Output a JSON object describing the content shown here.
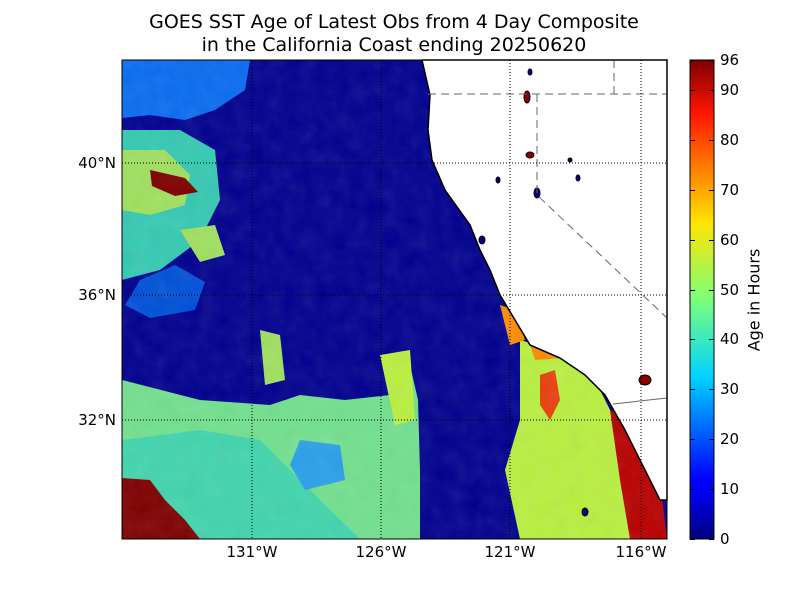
{
  "title_line1": "GOES SST Age of Latest Obs from 4 Day Composite",
  "title_line2": "in the California Coast ending 20250620",
  "lat_labels": [
    "40°N",
    "36°N",
    "32°N"
  ],
  "lon_labels": [
    "131°W",
    "126°W",
    "121°W",
    "116°W"
  ],
  "colorbar": {
    "label": "Age in Hours",
    "ticks": [
      "0",
      "10",
      "20",
      "30",
      "40",
      "50",
      "60",
      "70",
      "80",
      "90",
      "96"
    ],
    "min": 0,
    "max": 96,
    "colormap": "jet"
  },
  "colors": {
    "land": "#ffffff",
    "coast": "#000000",
    "recent": "#00008f",
    "mid": "#3fbf9f",
    "old": "#7f0000"
  }
}
